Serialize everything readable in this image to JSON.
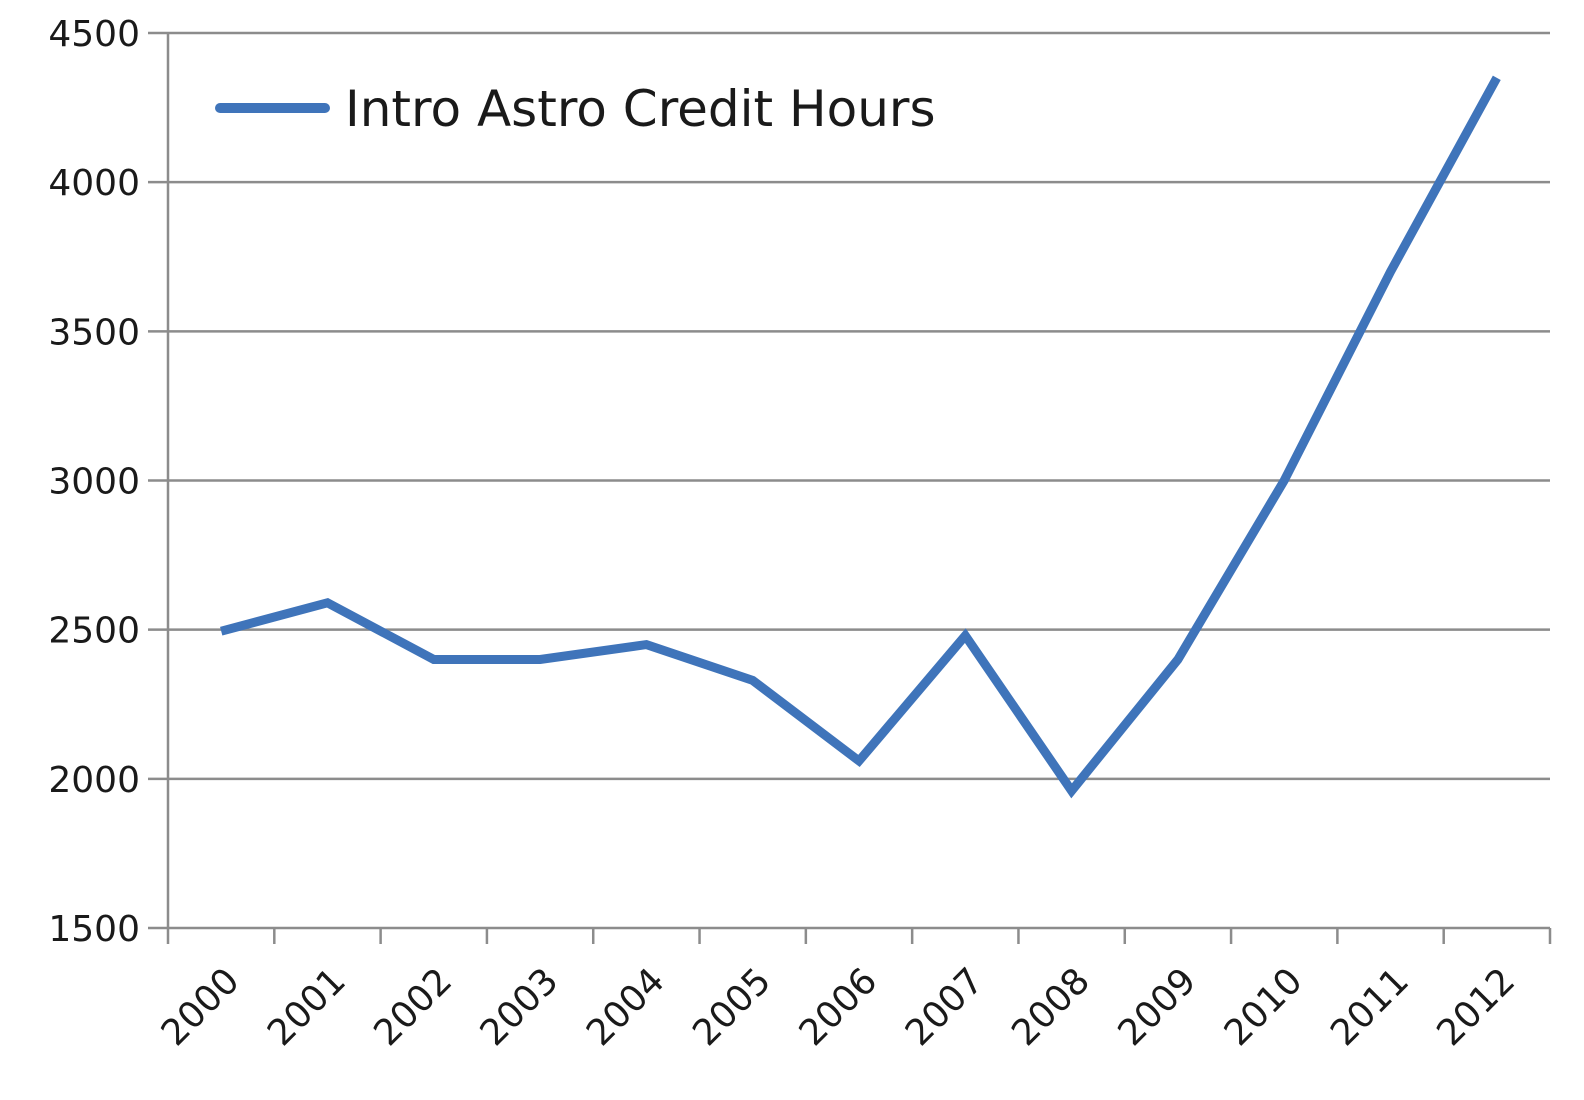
{
  "chart_data": {
    "type": "line",
    "categories": [
      "2000",
      "2001",
      "2002",
      "2003",
      "2004",
      "2005",
      "2006",
      "2007",
      "2008",
      "2009",
      "2010",
      "2011",
      "2012"
    ],
    "series": [
      {
        "name": "Intro Astro Credit Hours",
        "values": [
          2495,
          2590,
          2400,
          2400,
          2450,
          2330,
          2060,
          2480,
          1960,
          2400,
          3000,
          3700,
          4350
        ],
        "color": "#3f74ba"
      }
    ],
    "y_ticks": [
      "1500",
      "2000",
      "2500",
      "3000",
      "3500",
      "4000",
      "4500"
    ],
    "ylim": [
      1500,
      4500
    ],
    "grid": "horizontal",
    "legend_position": "top-left"
  }
}
